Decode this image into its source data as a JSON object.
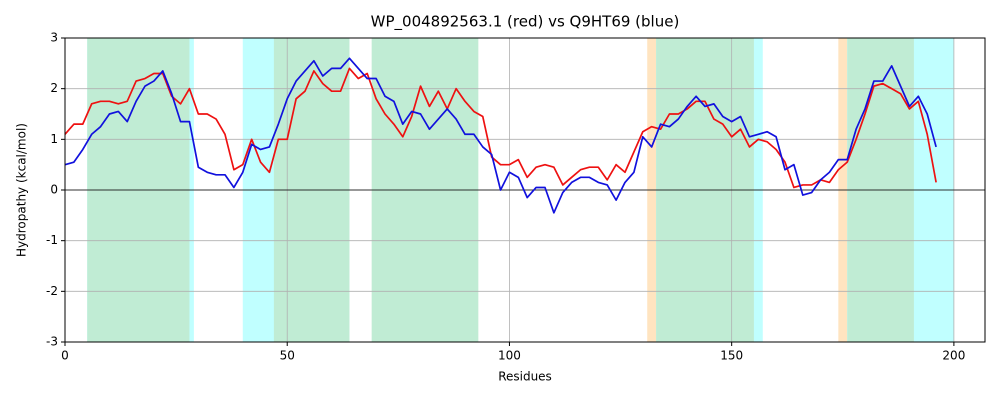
{
  "chart_data": {
    "type": "line",
    "title": "WP_004892563.1 (red) vs Q9HT69 (blue)",
    "x_label": "Residues",
    "y_label": "Hydropathy (kcal/mol)",
    "xlim": [
      0,
      207
    ],
    "ylim": [
      -3,
      3
    ],
    "xticks": [
      0,
      50,
      100,
      150,
      200
    ],
    "yticks": [
      -3,
      -2,
      -1,
      0,
      1,
      2,
      3
    ],
    "grid": true,
    "hlines": [
      0
    ],
    "regions": [
      {
        "start": 5,
        "end": 29,
        "color": "#c0ffff"
      },
      {
        "start": 5,
        "end": 28,
        "color": "#c0ecd4"
      },
      {
        "start": 40,
        "end": 64,
        "color": "#c0ffff"
      },
      {
        "start": 47,
        "end": 64,
        "color": "#c0ecd4"
      },
      {
        "start": 69,
        "end": 93,
        "color": "#c0ecd4"
      },
      {
        "start": 131,
        "end": 133,
        "color": "#ffe4c0"
      },
      {
        "start": 133,
        "end": 157,
        "color": "#c0ffff"
      },
      {
        "start": 133,
        "end": 155,
        "color": "#c0ecd4"
      },
      {
        "start": 174,
        "end": 176,
        "color": "#ffe4c0"
      },
      {
        "start": 176,
        "end": 200,
        "color": "#c0ffff"
      },
      {
        "start": 176,
        "end": 191,
        "color": "#c0ecd4"
      }
    ],
    "x": [
      0,
      2,
      4,
      6,
      8,
      10,
      12,
      14,
      16,
      18,
      20,
      22,
      24,
      26,
      28,
      30,
      32,
      34,
      36,
      38,
      40,
      42,
      44,
      46,
      48,
      50,
      52,
      54,
      56,
      58,
      60,
      62,
      64,
      66,
      68,
      70,
      72,
      74,
      76,
      78,
      80,
      82,
      84,
      86,
      88,
      90,
      92,
      94,
      96,
      98,
      100,
      102,
      104,
      106,
      108,
      110,
      112,
      114,
      116,
      118,
      120,
      122,
      124,
      126,
      128,
      130,
      132,
      134,
      136,
      138,
      140,
      142,
      144,
      146,
      148,
      150,
      152,
      154,
      156,
      158,
      160,
      162,
      164,
      166,
      168,
      170,
      172,
      174,
      176,
      178,
      180,
      182,
      184,
      186,
      188,
      190,
      192,
      194,
      196
    ],
    "series": [
      {
        "name": "red",
        "color": "#ee1111",
        "values": [
          1.1,
          1.3,
          1.3,
          1.7,
          1.75,
          1.75,
          1.7,
          1.75,
          2.15,
          2.2,
          2.3,
          2.3,
          1.85,
          1.7,
          2.0,
          1.5,
          1.5,
          1.4,
          1.1,
          0.4,
          0.5,
          1.0,
          0.55,
          0.35,
          1.0,
          1.0,
          1.8,
          1.95,
          2.35,
          2.1,
          1.95,
          1.95,
          2.4,
          2.2,
          2.3,
          1.8,
          1.5,
          1.3,
          1.05,
          1.45,
          2.05,
          1.65,
          1.95,
          1.6,
          2.0,
          1.75,
          1.55,
          1.45,
          0.65,
          0.5,
          0.5,
          0.6,
          0.25,
          0.45,
          0.5,
          0.45,
          0.1,
          0.25,
          0.4,
          0.45,
          0.45,
          0.2,
          0.5,
          0.35,
          0.75,
          1.15,
          1.25,
          1.2,
          1.5,
          1.5,
          1.6,
          1.75,
          1.75,
          1.4,
          1.3,
          1.05,
          1.2,
          0.85,
          1.0,
          0.95,
          0.8,
          0.55,
          0.05,
          0.1,
          0.1,
          0.2,
          0.15,
          0.4,
          0.55,
          1.0,
          1.5,
          2.05,
          2.1,
          2.0,
          1.9,
          1.6,
          1.75,
          1.1,
          0.15
        ]
      },
      {
        "name": "blue",
        "color": "#1111dd",
        "values": [
          0.5,
          0.55,
          0.8,
          1.1,
          1.25,
          1.5,
          1.55,
          1.35,
          1.75,
          2.05,
          2.15,
          2.35,
          1.9,
          1.35,
          1.35,
          0.45,
          0.35,
          0.3,
          0.3,
          0.05,
          0.35,
          0.9,
          0.8,
          0.85,
          1.3,
          1.8,
          2.15,
          2.35,
          2.55,
          2.25,
          2.4,
          2.4,
          2.6,
          2.4,
          2.2,
          2.2,
          1.85,
          1.75,
          1.3,
          1.55,
          1.5,
          1.2,
          1.4,
          1.6,
          1.4,
          1.1,
          1.1,
          0.85,
          0.7,
          0.0,
          0.35,
          0.25,
          -0.15,
          0.05,
          0.05,
          -0.45,
          -0.05,
          0.15,
          0.25,
          0.25,
          0.15,
          0.1,
          -0.2,
          0.15,
          0.35,
          1.05,
          0.85,
          1.3,
          1.25,
          1.4,
          1.65,
          1.85,
          1.65,
          1.7,
          1.45,
          1.35,
          1.45,
          1.05,
          1.1,
          1.15,
          1.05,
          0.4,
          0.5,
          -0.1,
          -0.05,
          0.2,
          0.35,
          0.6,
          0.6,
          1.2,
          1.6,
          2.15,
          2.15,
          2.45,
          2.05,
          1.65,
          1.85,
          1.5,
          0.85
        ]
      }
    ]
  }
}
